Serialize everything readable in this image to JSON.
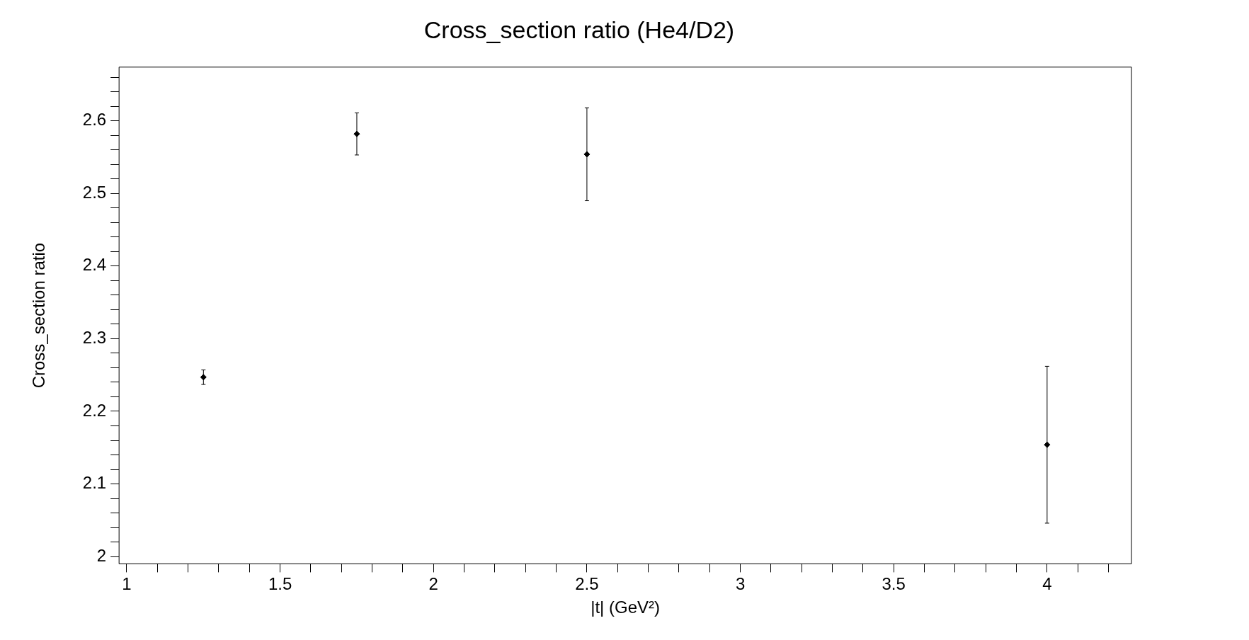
{
  "chart_data": {
    "type": "scatter",
    "title": "Cross_section ratio (He4/D2)",
    "xlabel": "|t| (GeV²)",
    "ylabel": "Cross_section ratio",
    "x": [
      1.25,
      1.75,
      2.5,
      4
    ],
    "series": [
      {
        "color": "#000000",
        "values": [
          2.247,
          2.582,
          2.554,
          2.154
        ],
        "errors": [
          0.01,
          0.029,
          0.064,
          0.108
        ]
      }
    ],
    "marker": "diamond",
    "grid": false,
    "legend": false,
    "xlim": [
      0.975,
      4.275
    ],
    "xticks": [
      1,
      {
        "value": 1.1,
        "label": null
      },
      {
        "value": 1.2,
        "label": null
      },
      {
        "value": 1.3,
        "label": null
      },
      {
        "value": 1.4,
        "label": null
      },
      1.5,
      {
        "value": 1.6,
        "label": null
      },
      {
        "value": 1.7,
        "label": null
      },
      {
        "value": 1.8,
        "label": null
      },
      {
        "value": 1.9,
        "label": null
      },
      2,
      {
        "value": 2.1,
        "label": null
      },
      {
        "value": 2.2,
        "label": null
      },
      {
        "value": 2.3,
        "label": null
      },
      {
        "value": 2.4,
        "label": null
      },
      2.5,
      {
        "value": 2.6,
        "label": null
      },
      {
        "value": 2.7,
        "label": null
      },
      {
        "value": 2.8,
        "label": null
      },
      {
        "value": 2.9,
        "label": null
      },
      3,
      {
        "value": 3.1,
        "label": null
      },
      {
        "value": 3.2,
        "label": null
      },
      {
        "value": 3.3,
        "label": null
      },
      {
        "value": 3.4,
        "label": null
      },
      3.5,
      {
        "value": 3.6,
        "label": null
      },
      {
        "value": 3.7,
        "label": null
      },
      {
        "value": 3.8,
        "label": null
      },
      {
        "value": 3.9,
        "label": null
      },
      4,
      {
        "value": 4.1,
        "label": null
      },
      {
        "value": 4.2,
        "label": null
      }
    ],
    "ylim": [
      1.99,
      2.674
    ],
    "yticks": [
      2,
      {
        "value": 2.02,
        "label": null
      },
      {
        "value": 2.04,
        "label": null
      },
      {
        "value": 2.06,
        "label": null
      },
      {
        "value": 2.08,
        "label": null
      },
      2.1,
      {
        "value": 2.12,
        "label": null
      },
      {
        "value": 2.14,
        "label": null
      },
      {
        "value": 2.16,
        "label": null
      },
      {
        "value": 2.18,
        "label": null
      },
      2.2,
      {
        "value": 2.22,
        "label": null
      },
      {
        "value": 2.24,
        "label": null
      },
      {
        "value": 2.26,
        "label": null
      },
      {
        "value": 2.28,
        "label": null
      },
      2.3,
      {
        "value": 2.32,
        "label": null
      },
      {
        "value": 2.34,
        "label": null
      },
      {
        "value": 2.36,
        "label": null
      },
      {
        "value": 2.38,
        "label": null
      },
      2.4,
      {
        "value": 2.42,
        "label": null
      },
      {
        "value": 2.44,
        "label": null
      },
      {
        "value": 2.46,
        "label": null
      },
      {
        "value": 2.48,
        "label": null
      },
      2.5,
      {
        "value": 2.52,
        "label": null
      },
      {
        "value": 2.54,
        "label": null
      },
      {
        "value": 2.56,
        "label": null
      },
      {
        "value": 2.58,
        "label": null
      },
      2.6,
      {
        "value": 2.62,
        "label": null
      },
      {
        "value": 2.64,
        "label": null
      },
      {
        "value": 2.66,
        "label": null
      }
    ]
  }
}
